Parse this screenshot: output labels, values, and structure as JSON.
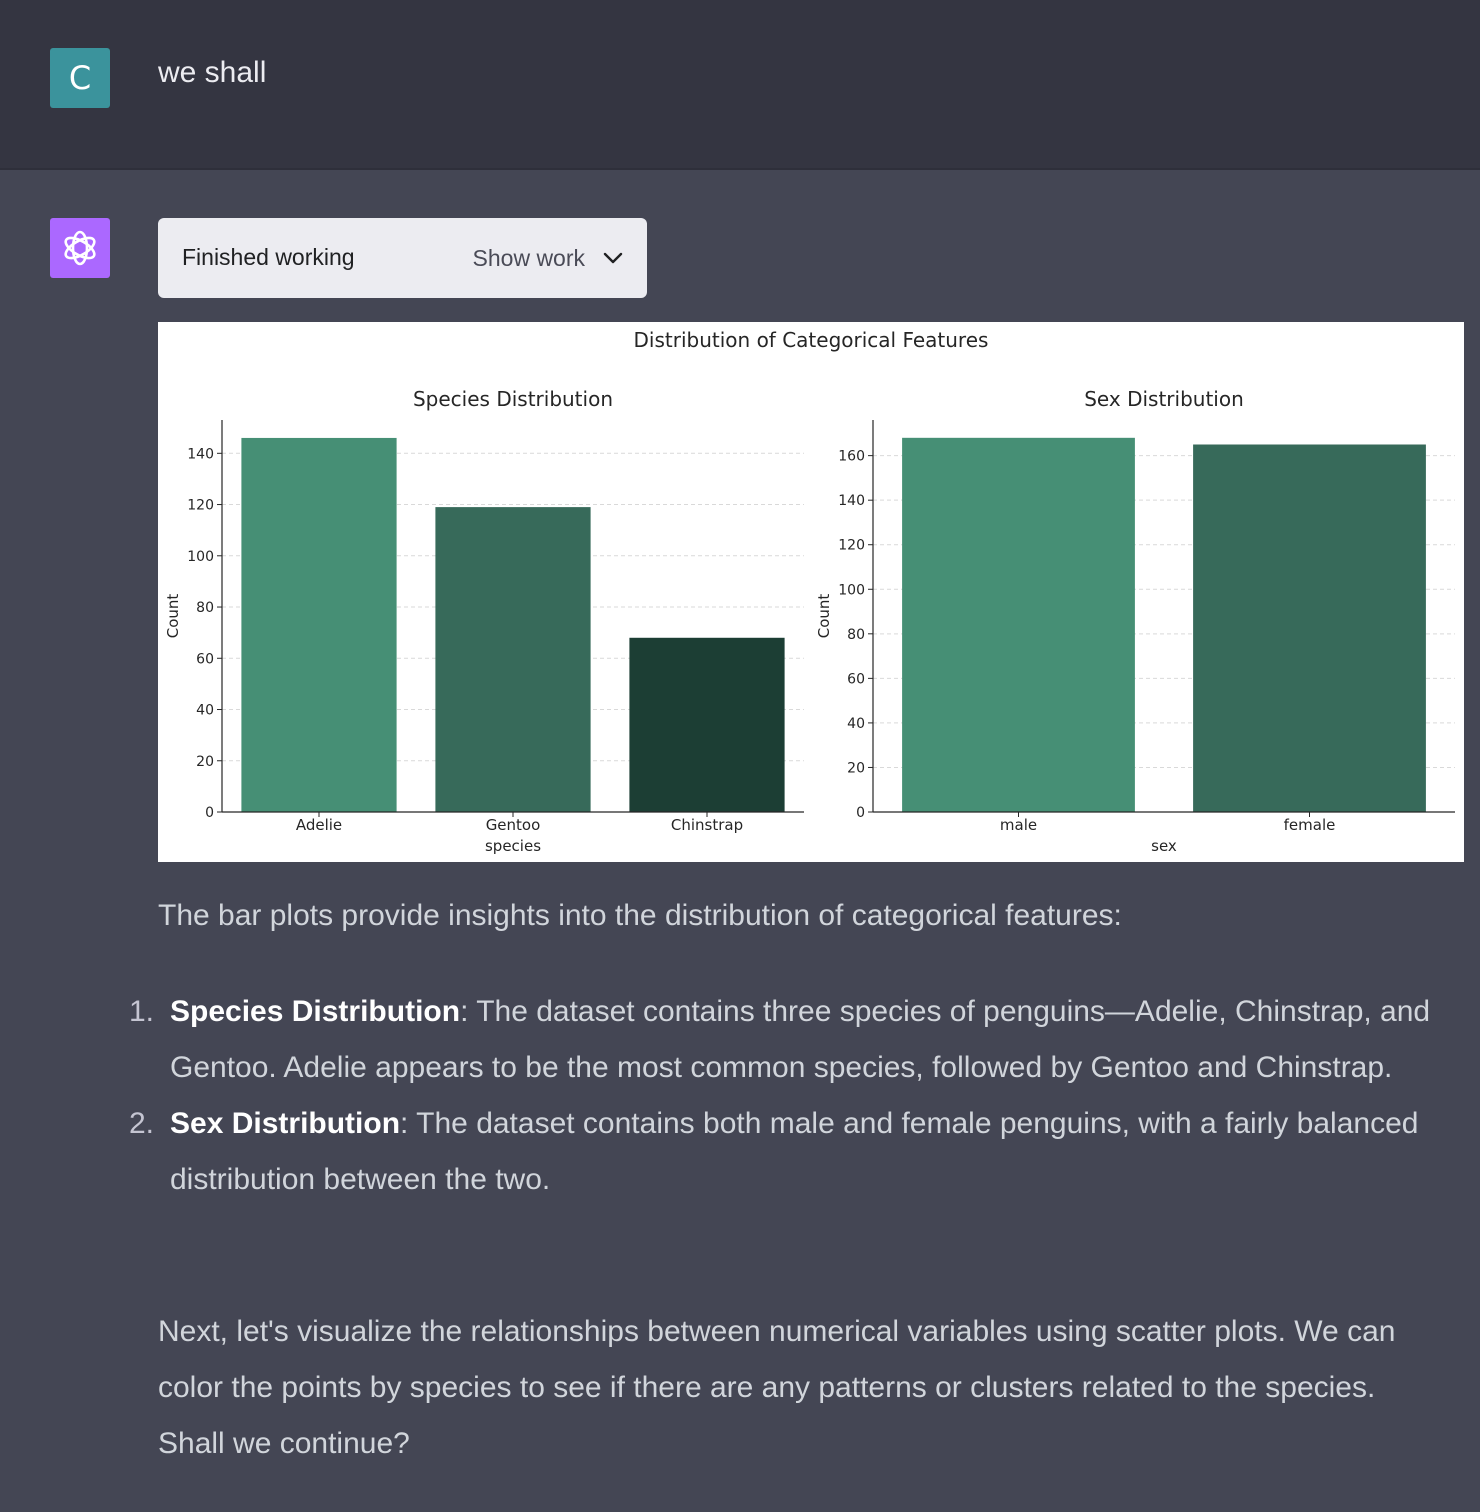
{
  "user": {
    "avatar_letter": "C",
    "message": "we shall"
  },
  "assistant": {
    "work_box": {
      "status": "Finished working",
      "toggle_label": "Show work",
      "toggle_icon": "chevron-down-icon"
    },
    "intro": "The bar plots provide insights into the distribution of categorical features:",
    "list": [
      {
        "number": "1.",
        "term": "Species Distribution",
        "text": ": The dataset contains three species of penguins—Adelie, Chinstrap, and Gentoo. Adelie appears to be the most common species, followed by Gentoo and Chinstrap."
      },
      {
        "number": "2.",
        "term": "Sex Distribution",
        "text": ": The dataset contains both male and female penguins, with a fairly balanced distribution between the two."
      }
    ],
    "closing": "Next, let's visualize the relationships between numerical variables using scatter plots. We can color the points by species to see if there are any patterns or clusters related to the species. Shall we continue?"
  },
  "colors": {
    "user_avatar": "#3b939c",
    "bot_avatar": "#ab68ff",
    "bar_palette": [
      "#468f75",
      "#376a5a",
      "#1c3e34"
    ]
  },
  "chart_data": {
    "suptitle": "Distribution of Categorical Features",
    "charts": [
      {
        "type": "bar",
        "title": "Species Distribution",
        "xlabel": "species",
        "ylabel": "Count",
        "categories": [
          "Adelie",
          "Gentoo",
          "Chinstrap"
        ],
        "values": [
          146,
          119,
          68
        ],
        "ylim": [
          0,
          153
        ],
        "yticks": [
          0,
          20,
          40,
          60,
          80,
          100,
          120,
          140
        ],
        "grid": "y-dashed"
      },
      {
        "type": "bar",
        "title": "Sex Distribution",
        "xlabel": "sex",
        "ylabel": "Count",
        "categories": [
          "male",
          "female"
        ],
        "values": [
          168,
          165
        ],
        "ylim": [
          0,
          176
        ],
        "yticks": [
          0,
          20,
          40,
          60,
          80,
          100,
          120,
          140,
          160
        ],
        "grid": "y-dashed"
      }
    ]
  }
}
